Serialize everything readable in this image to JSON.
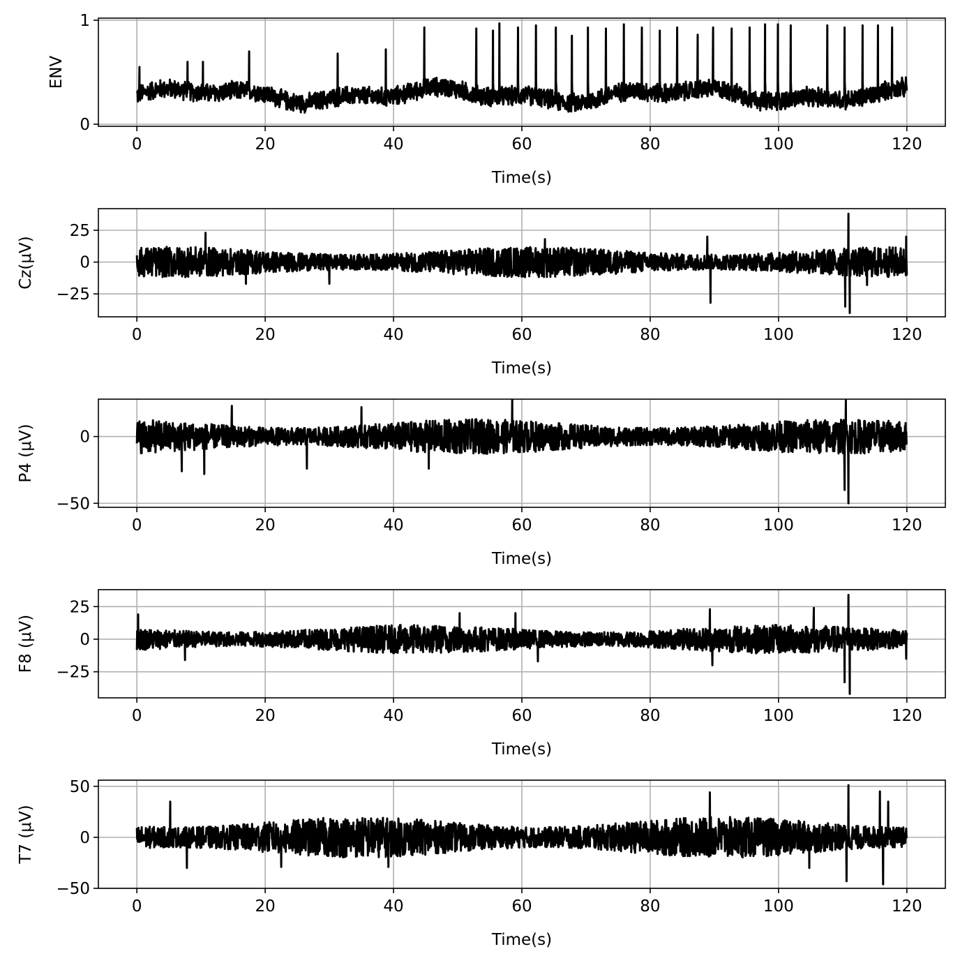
{
  "chart_data": [
    {
      "type": "line",
      "xlabel": "Time(s)",
      "ylabel": "ENV",
      "xlim": [
        -6,
        126
      ],
      "ylim": [
        -0.02,
        1.02
      ],
      "xticks": [
        0,
        20,
        40,
        60,
        80,
        100,
        120
      ],
      "yticks": [
        0,
        1
      ],
      "grid": true,
      "series_color": "#000000",
      "baseline": 0.28,
      "noise_amplitude": 0.08,
      "spikes": [
        [
          0.4,
          0.55
        ],
        [
          7.9,
          0.6
        ],
        [
          10.3,
          0.6
        ],
        [
          17.5,
          0.7
        ],
        [
          31.3,
          0.68
        ],
        [
          38.8,
          0.72
        ],
        [
          44.8,
          0.93
        ],
        [
          52.9,
          0.92
        ],
        [
          55.5,
          0.9
        ],
        [
          56.5,
          0.97
        ],
        [
          59.4,
          0.93
        ],
        [
          62.2,
          0.95
        ],
        [
          65.3,
          0.93
        ],
        [
          67.8,
          0.85
        ],
        [
          70.3,
          0.93
        ],
        [
          73.1,
          0.92
        ],
        [
          75.9,
          0.96
        ],
        [
          78.7,
          0.93
        ],
        [
          81.5,
          0.9
        ],
        [
          84.2,
          0.93
        ],
        [
          87.4,
          0.86
        ],
        [
          89.8,
          0.93
        ],
        [
          92.7,
          0.92
        ],
        [
          95.5,
          0.93
        ],
        [
          97.9,
          0.96
        ],
        [
          99.9,
          0.96
        ],
        [
          101.9,
          0.95
        ],
        [
          107.6,
          0.95
        ],
        [
          110.3,
          0.93
        ],
        [
          113.1,
          0.95
        ],
        [
          115.5,
          0.95
        ],
        [
          117.7,
          0.93
        ]
      ]
    },
    {
      "type": "line",
      "xlabel": "Time(s)",
      "ylabel": "Cz(μV)",
      "xlim": [
        -6,
        126
      ],
      "ylim": [
        -43,
        42
      ],
      "xticks": [
        0,
        20,
        40,
        60,
        80,
        100,
        120
      ],
      "yticks": [
        -25,
        0,
        25
      ],
      "ytick_labels": [
        "−25",
        "0",
        "25"
      ],
      "grid": true,
      "series_color": "#000000",
      "baseline": 0,
      "noise_amplitude": 12,
      "spikes": [
        [
          10.7,
          23
        ],
        [
          17,
          -17
        ],
        [
          30,
          -17
        ],
        [
          63.6,
          18
        ],
        [
          89.4,
          -32
        ],
        [
          88.9,
          20
        ],
        [
          110.4,
          -35
        ],
        [
          110.9,
          38
        ],
        [
          111.1,
          -40
        ],
        [
          113.8,
          -18
        ],
        [
          119.9,
          20
        ]
      ]
    },
    {
      "type": "line",
      "xlabel": "Time(s)",
      "ylabel": "P4 (μV)",
      "xlim": [
        -6,
        126
      ],
      "ylim": [
        -53,
        28
      ],
      "xticks": [
        0,
        20,
        40,
        60,
        80,
        100,
        120
      ],
      "yticks": [
        -50,
        0
      ],
      "ytick_labels": [
        "−50",
        "0"
      ],
      "grid": true,
      "series_color": "#000000",
      "baseline": 0,
      "noise_amplitude": 13,
      "spikes": [
        [
          7,
          -26
        ],
        [
          10.5,
          -28
        ],
        [
          14.8,
          23
        ],
        [
          26.5,
          -24
        ],
        [
          35,
          22
        ],
        [
          45.5,
          -24
        ],
        [
          58.5,
          28
        ],
        [
          110.5,
          27
        ],
        [
          110.9,
          -50
        ],
        [
          110.3,
          -40
        ]
      ]
    },
    {
      "type": "line",
      "xlabel": "Time(s)",
      "ylabel": "F8 (μV)",
      "xlim": [
        -6,
        126
      ],
      "ylim": [
        -45,
        38
      ],
      "xticks": [
        0,
        20,
        40,
        60,
        80,
        100,
        120
      ],
      "yticks": [
        -25,
        0,
        25
      ],
      "ytick_labels": [
        "−25",
        "0",
        "25"
      ],
      "grid": true,
      "series_color": "#000000",
      "baseline": 0,
      "noise_amplitude": 11,
      "spikes": [
        [
          0.2,
          19
        ],
        [
          7.5,
          -16
        ],
        [
          50.3,
          20
        ],
        [
          59,
          20
        ],
        [
          62.5,
          -17
        ],
        [
          89.3,
          23
        ],
        [
          89.7,
          -20
        ],
        [
          105.5,
          24
        ],
        [
          110.3,
          -33
        ],
        [
          110.9,
          34
        ],
        [
          111.1,
          -42
        ],
        [
          119.9,
          -15
        ]
      ]
    },
    {
      "type": "line",
      "xlabel": "Time(s)",
      "ylabel": "T7 (μV)",
      "xlim": [
        -6,
        126
      ],
      "ylim": [
        -50,
        56
      ],
      "xticks": [
        0,
        20,
        40,
        60,
        80,
        100,
        120
      ],
      "yticks": [
        -50,
        0,
        50
      ],
      "ytick_labels": [
        "−50",
        "0",
        "50"
      ],
      "grid": true,
      "series_color": "#000000",
      "baseline": 0,
      "noise_amplitude": 20,
      "spikes": [
        [
          5.2,
          35
        ],
        [
          7.8,
          -30
        ],
        [
          22.5,
          -29
        ],
        [
          39.2,
          -29
        ],
        [
          89.3,
          44
        ],
        [
          104.8,
          -30
        ],
        [
          110.9,
          51
        ],
        [
          110.6,
          -43
        ],
        [
          115.8,
          45
        ],
        [
          116.3,
          -46
        ],
        [
          117.1,
          35
        ]
      ]
    }
  ]
}
